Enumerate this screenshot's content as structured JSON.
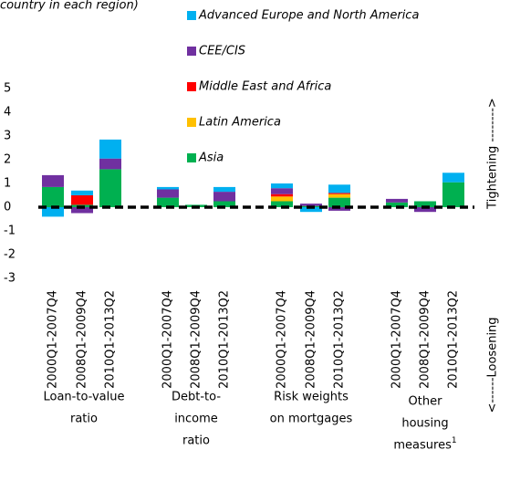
{
  "chart_data": {
    "type": "bar",
    "stacked": true,
    "subtitle": "country in each region)",
    "categories": [
      "2000Q1-2007Q4",
      "2008Q1-2009Q4",
      "2010Q1-2013Q2",
      "2000Q1-2007Q4",
      "2008Q1-2009Q4",
      "2010Q1-2013Q2",
      "2000Q1-2007Q4",
      "2008Q1-2009Q4",
      "2010Q1-2013Q2",
      "2000Q1-2007Q4",
      "2008Q1-2009Q4",
      "2010Q1-2013Q2"
    ],
    "groups": [
      {
        "lines": [
          "Loan-to-value",
          "ratio"
        ]
      },
      {
        "lines": [
          "Debt-to-",
          "income",
          "ratio"
        ]
      },
      {
        "lines": [
          "Risk weights",
          "on mortgages"
        ]
      },
      {
        "lines": [
          "Other",
          "housing",
          "measures"
        ],
        "footnote": "1"
      }
    ],
    "series": [
      {
        "name": "Advanced Europe and North America",
        "color": "#00b0f0",
        "values": [
          -0.4,
          0.2,
          0.8,
          0.1,
          0,
          0.2,
          0.2,
          -0.2,
          0.35,
          0,
          0,
          0.4
        ]
      },
      {
        "name": "CEE/CIS",
        "color": "#7030a0",
        "values": [
          0.5,
          -0.25,
          0.45,
          0.35,
          0,
          0.4,
          0.25,
          0.1,
          -0.15,
          0.15,
          -0.2,
          0
        ]
      },
      {
        "name": "Middle East and Africa",
        "color": "#ff0000",
        "values": [
          0,
          0.4,
          0,
          0,
          0,
          0,
          0.1,
          0,
          0.05,
          0,
          0,
          0
        ]
      },
      {
        "name": "Latin America",
        "color": "#ffc000",
        "values": [
          0,
          0,
          0,
          0,
          0,
          0,
          0.2,
          0,
          0.15,
          0,
          0,
          0
        ]
      },
      {
        "name": "Asia",
        "color": "#00b050",
        "values": [
          0.85,
          0.1,
          1.6,
          0.4,
          0.1,
          0.25,
          0.25,
          0.05,
          0.4,
          0.2,
          0.25,
          1.05
        ]
      }
    ],
    "ylim": [
      -3,
      5
    ],
    "yticks": [
      -3,
      -2,
      -1,
      0,
      1,
      2,
      3,
      4,
      5
    ],
    "right_labels": [
      "Tightening -------->",
      "<------Loosening"
    ]
  }
}
